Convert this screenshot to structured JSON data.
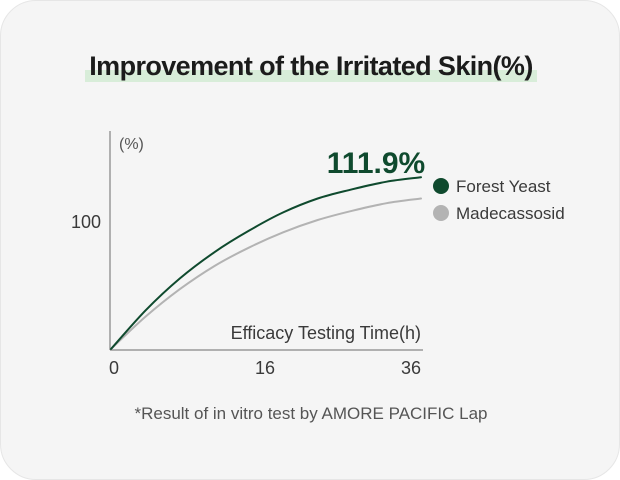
{
  "title": "Improvement of the Irritated Skin(%)",
  "footnote": "*Result of in vitro test by AMORE PACIFIC Lap",
  "colors": {
    "forest": "#0f4a2e",
    "madeca": "#b3b3b3",
    "highlight": "#d8edd9",
    "axis": "#9a9a9a"
  },
  "chart_data": {
    "type": "line",
    "title": "Improvement of the Irritated Skin(%)",
    "xlabel": "Efficacy Testing Time(h)",
    "ylabel": "(%)",
    "x_ticks": [
      "0",
      "16",
      "36"
    ],
    "y_ticks": [
      "100"
    ],
    "xlim": [
      0,
      36
    ],
    "ylim": [
      0,
      142
    ],
    "grid": false,
    "legend_position": "right",
    "annotation": "111.9%",
    "series": [
      {
        "name": "Forest Yeast",
        "color": "#0f4a2e",
        "x": [
          0,
          4,
          8,
          12,
          16,
          20,
          24,
          28,
          32,
          36
        ],
        "y": [
          0,
          25,
          46,
          63,
          77,
          89,
          98,
          104,
          109,
          111.9
        ]
      },
      {
        "name": "Madecassosid",
        "color": "#b3b3b3",
        "x": [
          0,
          4,
          8,
          12,
          16,
          20,
          24,
          28,
          32,
          36
        ],
        "y": [
          0,
          21,
          39,
          54,
          66,
          76,
          84,
          90,
          95,
          98
        ]
      }
    ]
  }
}
